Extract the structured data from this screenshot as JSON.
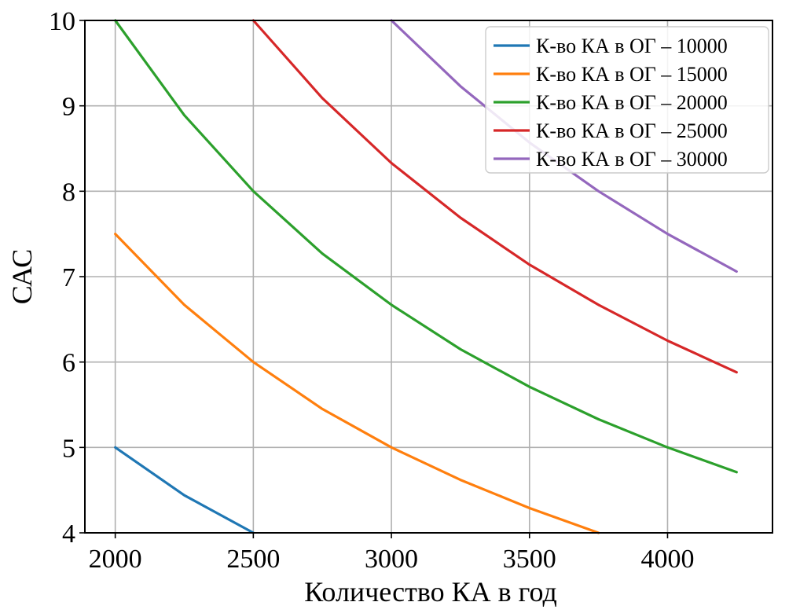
{
  "chart_data": {
    "type": "line",
    "title": "",
    "xlabel": "Количество КА в год",
    "ylabel": "САС",
    "xlim": [
      1890,
      4380
    ],
    "ylim": [
      4,
      10
    ],
    "xticks": [
      2000,
      2500,
      3000,
      3500,
      4000
    ],
    "yticks": [
      4,
      5,
      6,
      7,
      8,
      9,
      10
    ],
    "grid": true,
    "legend_position": "top-right",
    "series": [
      {
        "name": "К-во КА в ОГ – 10000",
        "color": "#1f77b4",
        "x": [
          2000,
          2250,
          2500
        ],
        "y": [
          5.0,
          4.44,
          4.0
        ]
      },
      {
        "name": "К-во КА в ОГ – 15000",
        "color": "#ff7f0e",
        "x": [
          2000,
          2250,
          2500,
          2750,
          3000,
          3250,
          3500,
          3750
        ],
        "y": [
          7.5,
          6.67,
          6.0,
          5.45,
          5.0,
          4.62,
          4.29,
          4.0
        ]
      },
      {
        "name": "К-во КА в ОГ – 20000",
        "color": "#2ca02c",
        "x": [
          2000,
          2250,
          2500,
          2750,
          3000,
          3250,
          3500,
          3750,
          4000,
          4250
        ],
        "y": [
          10.0,
          8.89,
          8.0,
          7.27,
          6.67,
          6.15,
          5.71,
          5.33,
          5.0,
          4.71
        ]
      },
      {
        "name": "К-во КА в ОГ – 25000",
        "color": "#d62728",
        "x": [
          2500,
          2750,
          3000,
          3250,
          3500,
          3750,
          4000,
          4250
        ],
        "y": [
          10.0,
          9.09,
          8.33,
          7.69,
          7.14,
          6.67,
          6.25,
          5.88
        ]
      },
      {
        "name": "К-во КА в ОГ – 30000",
        "color": "#9467bd",
        "x": [
          3000,
          3250,
          3500,
          3750,
          4000,
          4250
        ],
        "y": [
          10.0,
          9.23,
          8.57,
          8.0,
          7.5,
          7.06
        ]
      }
    ]
  }
}
